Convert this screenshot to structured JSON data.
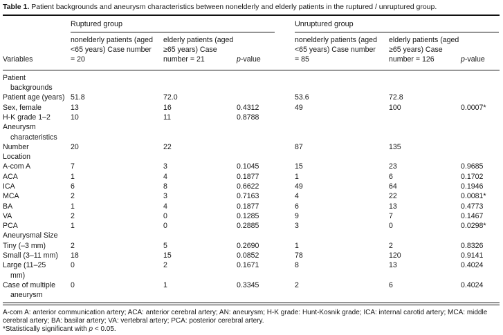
{
  "title": {
    "label": "Table 1.",
    "text": "Patient backgrounds and aneurysm characteristics between nonelderly and elderly patients in the ruptured / unruptured group."
  },
  "header": {
    "ruptured_group": "Ruptured group",
    "unruptured_group": "Unruptured group",
    "variables": "Variables",
    "rup_nonelderly": "nonelderly patients (aged\n<65 years) Case number\n= 20",
    "rup_elderly": "elderly patients (aged\n≥65 years) Case\nnumber = 21",
    "unrup_nonelderly": "nonelderly patients (aged\n<65 years) Case number\n= 85",
    "unrup_elderly": "elderly patients (aged\n≥65 years) Case\nnumber = 126",
    "p_italic": "p",
    "p_rest": "-value"
  },
  "rows": [
    {
      "label": "Patient\nbackgrounds",
      "cells": [
        "",
        "",
        "",
        "",
        "",
        ""
      ]
    },
    {
      "label": "Patient age (years)",
      "cells": [
        "51.8",
        "72.0",
        "",
        "53.6",
        "72.8",
        ""
      ]
    },
    {
      "label": "Sex, female",
      "cells": [
        "13",
        "16",
        "0.4312",
        "49",
        "100",
        "0.0007*"
      ]
    },
    {
      "label": "H-K grade 1–2",
      "cells": [
        "10",
        "11",
        "0.8788",
        "",
        "",
        ""
      ]
    },
    {
      "label": "Aneurysm\ncharacteristics",
      "cells": [
        "",
        "",
        "",
        "",
        "",
        ""
      ]
    },
    {
      "label": "Number",
      "cells": [
        "20",
        "22",
        "",
        "87",
        "135",
        ""
      ]
    },
    {
      "label": "Location",
      "cells": [
        "",
        "",
        "",
        "",
        "",
        ""
      ]
    },
    {
      "label": "A-com A",
      "cells": [
        "7",
        "3",
        "0.1045",
        "15",
        "23",
        "0.9685"
      ]
    },
    {
      "label": "ACA",
      "cells": [
        "1",
        "4",
        "0.1877",
        "1",
        "6",
        "0.1702"
      ]
    },
    {
      "label": "ICA",
      "cells": [
        "6",
        "8",
        "0.6622",
        "49",
        "64",
        "0.1946"
      ]
    },
    {
      "label": "MCA",
      "cells": [
        "2",
        "3",
        "0.7163",
        "4",
        "22",
        "0.0081*"
      ]
    },
    {
      "label": "BA",
      "cells": [
        "1",
        "4",
        "0.1877",
        "6",
        "13",
        "0.4773"
      ]
    },
    {
      "label": "VA",
      "cells": [
        "2",
        "0",
        "0.1285",
        "9",
        "7",
        "0.1467"
      ]
    },
    {
      "label": "PCA",
      "cells": [
        "1",
        "0",
        "0.2885",
        "3",
        "0",
        "0.0298*"
      ]
    },
    {
      "label": "Aneurysmal Size",
      "cells": [
        "",
        "",
        "",
        "",
        "",
        ""
      ]
    },
    {
      "label": "Tiny (–3 mm)",
      "cells": [
        "2",
        "5",
        "0.2690",
        "1",
        "2",
        "0.8326"
      ]
    },
    {
      "label": "Small (3–11 mm)",
      "cells": [
        "18",
        "15",
        "0.0852",
        "78",
        "120",
        "0.9141"
      ]
    },
    {
      "label": "Large (11–25\nmm)",
      "cells": [
        "0",
        "2",
        "0.1671",
        "8",
        "13",
        "0.4024"
      ]
    },
    {
      "label": "Case of multiple\naneurysm",
      "cells": [
        "0",
        "1",
        "0.3345",
        "2",
        "6",
        "0.4024"
      ]
    }
  ],
  "footnotes": {
    "abbreviations": "A-com A: anterior communication artery; ACA: anterior cerebral artery; AN: aneurysm; H-K grade: Hunt-Kosnik grade; ICA: internal carotid artery; MCA: middle cerebral artery; BA: basilar artery; VA: vertebral artery; PCA: posterior cerebral artery.",
    "sig_prefix": "*Statistically significant with ",
    "sig_p": "p",
    "sig_suffix": " < 0.05."
  }
}
